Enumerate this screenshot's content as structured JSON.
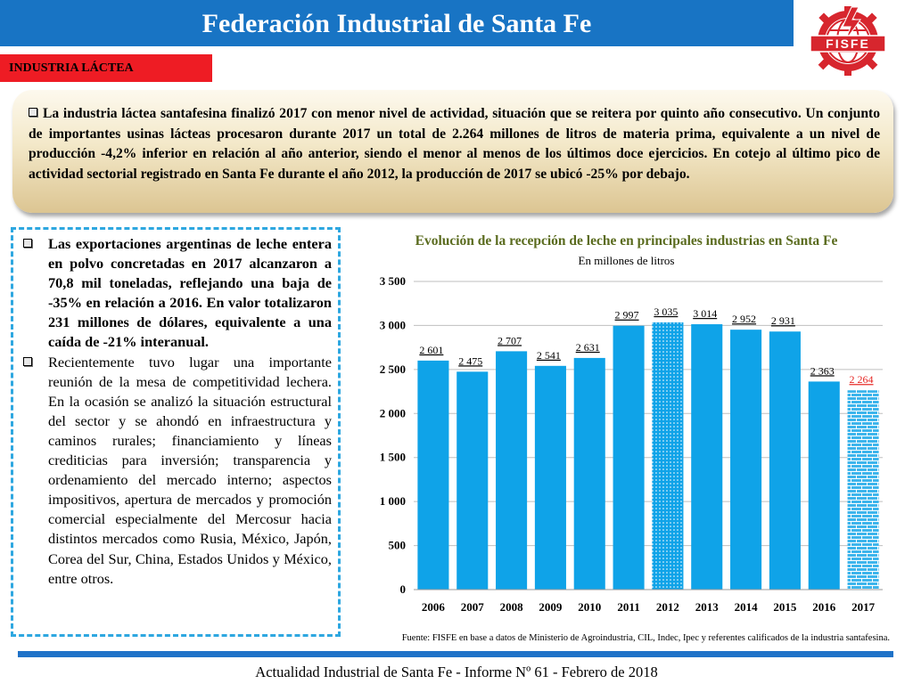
{
  "header": {
    "title": "Federación Industrial de Santa Fe",
    "logo_text": "FISFE",
    "logo_icon": "gear-lightning-globe-icon",
    "bar_color": "#1874c4",
    "logo_color": "#d7262e"
  },
  "section": {
    "label": "INDUSTRIA LÁCTEA",
    "color": "#ee1c24"
  },
  "summary": {
    "text": "La industria láctea santafesina finalizó 2017 con menor nivel de actividad, situación que se reitera por quinto año consecutivo. Un conjunto de importantes usinas lácteas procesaron durante 2017 un total de 2.264 millones de litros de materia prima, equivalente a un nivel de producción -4,2% inferior en relación al año anterior, siendo el menor al menos de los últimos doce ejercicios. En cotejo al último pico de actividad sectorial registrado en Santa Fe durante el año 2012, la producción de 2017 se ubicó -25% por debajo."
  },
  "bullets": [
    {
      "text": "Las exportaciones argentinas de leche entera en polvo concretadas en 2017 alcanzaron a 70,8 mil toneladas, reflejando una baja de -35% en relación a 2016. En valor totalizaron 231 millones de dólares, equivalente a una caída de -21% interanual.",
      "bold": true
    },
    {
      "text": "Recientemente tuvo lugar una importante reunión de la mesa de competitividad lechera. En la ocasión se analizó la situación estructural del sector y se ahondó en infraestructura y caminos rurales; financiamiento y líneas crediticias para inversión; transparencia y ordenamiento del mercado interno; aspectos impositivos, apertura de mercados y promoción comercial especialmente del Mercosur hacia distintos mercados como Rusia, México, Japón, Corea del Sur, China, Estados Unidos y México, entre otros.",
      "bold": false
    }
  ],
  "chart_data": {
    "type": "bar",
    "title": "Evolución de la recepción de leche en principales industrias en Santa Fe",
    "subtitle": "En millones de litros",
    "categories": [
      "2006",
      "2007",
      "2008",
      "2009",
      "2010",
      "2011",
      "2012",
      "2013",
      "2014",
      "2015",
      "2016",
      "2017"
    ],
    "values": [
      2601,
      2475,
      2707,
      2541,
      2631,
      2997,
      3035,
      3014,
      2952,
      2931,
      2363,
      2264
    ],
    "value_labels": [
      "2 601",
      "2 475",
      "2 707",
      "2 541",
      "2 631",
      "2 997",
      "3 035",
      "3 014",
      "2 952",
      "2 931",
      "2 363",
      "2 264"
    ],
    "ylim": [
      0,
      3500
    ],
    "yticks": [
      0,
      500,
      1000,
      1500,
      2000,
      2500,
      3000,
      3500
    ],
    "ytick_labels": [
      "0",
      "500",
      "1 000",
      "1 500",
      "2 000",
      "2 500",
      "3 000",
      "3 500"
    ],
    "grid": true,
    "bar_color": "#0fa3e8",
    "highlight_color": "#e52521",
    "patterned": {
      "2012": "dotted",
      "2017": "brick"
    }
  },
  "source": "Fuente: FISFE en base a datos de Ministerio de Agroindustria, CIL, Indec, Ipec y referentes calificados de la industria santafesina.",
  "footer": {
    "text": "Actualidad Industrial de Santa Fe - Informe Nº 61 - Febrero de 2018",
    "line_color": "#1f72c8"
  }
}
